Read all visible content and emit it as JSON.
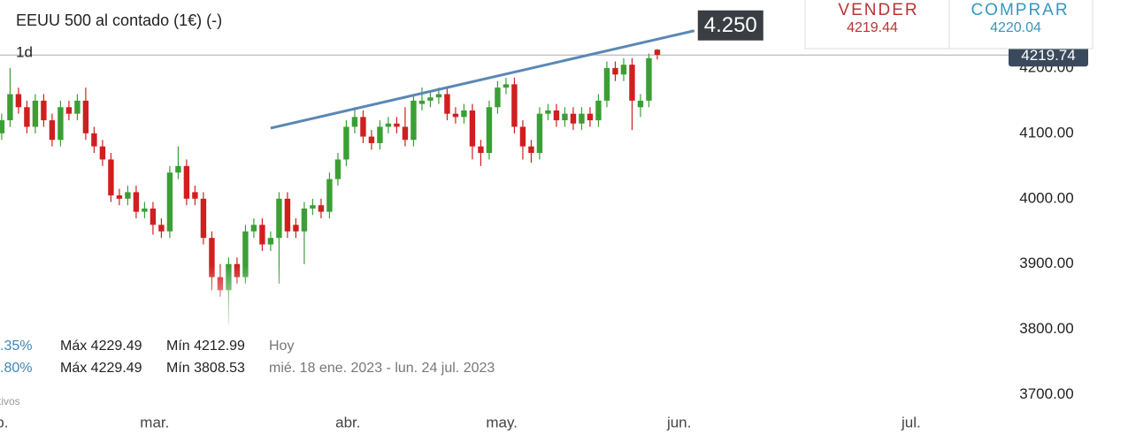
{
  "chart_data": {
    "type": "candlestick",
    "title": "EEUU 500 al contado (1€) (-)",
    "interval": "1d",
    "x": [
      0,
      1,
      2,
      3,
      4,
      5,
      6,
      7,
      8,
      9,
      10,
      11,
      12,
      13,
      14,
      15,
      16,
      17,
      18,
      19,
      20,
      21,
      22,
      23,
      24,
      25,
      26,
      27,
      28,
      29,
      30,
      31,
      32,
      33,
      34,
      35,
      36,
      37,
      38,
      39,
      40,
      41,
      42,
      43,
      44,
      45,
      46,
      47,
      48,
      49,
      50,
      51,
      52,
      53,
      54,
      55,
      56,
      57,
      58,
      59,
      60,
      61,
      62,
      63,
      64,
      65,
      66,
      67,
      68,
      69,
      70,
      71,
      72,
      73,
      74,
      75,
      76,
      77,
      78
    ],
    "open": [
      4100,
      4120,
      4160,
      4140,
      4110,
      4150,
      4120,
      4090,
      4140,
      4130,
      4150,
      4100,
      4080,
      4060,
      4005,
      4000,
      4010,
      3980,
      3985,
      3960,
      3950,
      4040,
      4050,
      4010,
      4000,
      3940,
      3880,
      3860,
      3900,
      3880,
      3950,
      3960,
      3930,
      3940,
      4000,
      3960,
      3950,
      3985,
      3990,
      3980,
      4030,
      4060,
      4110,
      4125,
      4095,
      4085,
      4110,
      4115,
      4110,
      4090,
      4145,
      4150,
      4155,
      4160,
      4130,
      4125,
      4135,
      4080,
      4070,
      4140,
      4170,
      4175,
      4110,
      4080,
      4070,
      4130,
      4135,
      4120,
      4130,
      4115,
      4130,
      4120,
      4150,
      4200,
      4190,
      4205,
      4140,
      4150,
      4228
    ],
    "high": [
      4130,
      4200,
      4170,
      4150,
      4160,
      4160,
      4130,
      4150,
      4150,
      4160,
      4170,
      4110,
      4090,
      4070,
      4015,
      4020,
      4020,
      3995,
      3995,
      3970,
      4050,
      4080,
      4060,
      4020,
      4010,
      3950,
      3900,
      3910,
      3910,
      3960,
      3970,
      3970,
      3950,
      4010,
      4010,
      3970,
      3995,
      4000,
      4000,
      4040,
      4070,
      4120,
      4140,
      4135,
      4105,
      4120,
      4125,
      4125,
      4140,
      4160,
      4170,
      4165,
      4170,
      4170,
      4140,
      4145,
      4145,
      4090,
      4150,
      4180,
      4185,
      4185,
      4120,
      4090,
      4140,
      4145,
      4145,
      4140,
      4140,
      4140,
      4140,
      4160,
      4210,
      4210,
      4215,
      4215,
      4160,
      4222,
      4229
    ],
    "low": [
      4090,
      4110,
      4130,
      4100,
      4100,
      4110,
      4080,
      4080,
      4120,
      4120,
      4090,
      4070,
      4050,
      3995,
      3990,
      3990,
      3970,
      3970,
      3945,
      3940,
      3940,
      4030,
      3990,
      3990,
      3930,
      3860,
      3850,
      3808,
      3870,
      3870,
      3940,
      3920,
      3920,
      3870,
      3940,
      3940,
      3900,
      3975,
      3970,
      3970,
      4020,
      4050,
      4100,
      4085,
      4075,
      4075,
      4100,
      4100,
      4080,
      4080,
      4135,
      4140,
      4145,
      4120,
      4115,
      4115,
      4060,
      4050,
      4060,
      4130,
      4160,
      4100,
      4060,
      4055,
      4060,
      4120,
      4110,
      4110,
      4105,
      4105,
      4110,
      4110,
      4140,
      4180,
      4180,
      4105,
      4125,
      4140,
      4213
    ],
    "close": [
      4120,
      4160,
      4140,
      4110,
      4150,
      4120,
      4090,
      4140,
      4130,
      4150,
      4100,
      4080,
      4060,
      4005,
      4000,
      4010,
      3980,
      3985,
      3960,
      3950,
      4040,
      4050,
      4000,
      4000,
      3940,
      3880,
      3860,
      3900,
      3880,
      3950,
      3960,
      3930,
      3940,
      4000,
      3950,
      3950,
      3985,
      3990,
      3980,
      4030,
      4060,
      4110,
      4125,
      4095,
      4085,
      4110,
      4115,
      4110,
      4090,
      4150,
      4150,
      4155,
      4160,
      4130,
      4125,
      4135,
      4080,
      4070,
      4140,
      4170,
      4175,
      4110,
      4080,
      4070,
      4130,
      4135,
      4120,
      4130,
      4115,
      4130,
      4120,
      4150,
      4200,
      4190,
      4205,
      4150,
      4150,
      4215,
      4220
    ],
    "up_color": "#3a9f35",
    "down_color": "#cf1f1f",
    "xlim": [
      -0.2,
      134
    ],
    "xticks": [
      {
        "value": -0.7,
        "label": "feb."
      },
      {
        "value": 18.2,
        "label": "mar."
      },
      {
        "value": 41.2,
        "label": "abr."
      },
      {
        "value": 59.5,
        "label": "may."
      },
      {
        "value": 80.6,
        "label": "jun."
      },
      {
        "value": 108.2,
        "label": "jul."
      }
    ],
    "ylim": [
      3640,
      4304
    ],
    "yticks": [
      {
        "value": 3700,
        "label": "3700.00"
      },
      {
        "value": 3800,
        "label": "3800.00"
      },
      {
        "value": 3900,
        "label": "3900.00"
      },
      {
        "value": 4000,
        "label": "4000.00"
      },
      {
        "value": 4100,
        "label": "4100.00"
      },
      {
        "value": 4200,
        "label": "4200.00"
      }
    ],
    "grid": false,
    "price_line": 4219.74,
    "trendline": {
      "x": [
        32,
        82.4
      ],
      "y": [
        4108,
        4257
      ],
      "label": "4.250",
      "color": "#5b87b5"
    }
  },
  "quote": {
    "sell_label": "VENDER",
    "sell_price": "4219.44",
    "buy_label": "COMPRAR",
    "buy_price": "4220.04"
  },
  "stats": {
    "rows": [
      [
        ".35%",
        "Máx 4229.49",
        "Mín 4212.99",
        "Hoy"
      ],
      [
        ".80%",
        "Máx 4229.49",
        "Mín 3808.53",
        "mié. 18 ene. 2023 - lun. 24 jul. 2023"
      ]
    ],
    "footnote": "tivos"
  }
}
